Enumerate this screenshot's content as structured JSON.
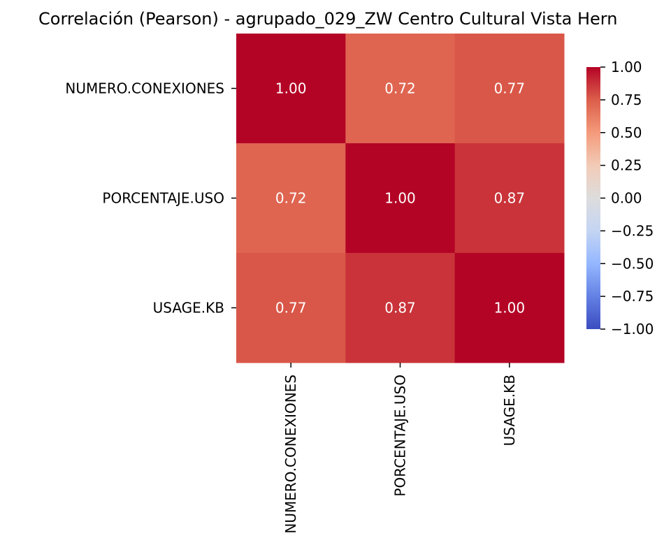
{
  "chart_data": {
    "type": "heatmap",
    "title": "Correlación (Pearson) - agrupado_029_ZW Centro Cultural Vista Hern",
    "row_labels": [
      "NUMERO.CONEXIONES",
      "PORCENTAJE.USO",
      "USAGE.KB"
    ],
    "col_labels": [
      "NUMERO.CONEXIONES",
      "PORCENTAJE.USO",
      "USAGE.KB"
    ],
    "values": [
      [
        1.0,
        0.72,
        0.77
      ],
      [
        0.72,
        1.0,
        0.87
      ],
      [
        0.77,
        0.87,
        1.0
      ]
    ],
    "cell_labels": [
      [
        "1.00",
        "0.72",
        "0.77"
      ],
      [
        "0.72",
        "1.00",
        "0.87"
      ],
      [
        "0.77",
        "0.87",
        "1.00"
      ]
    ],
    "colorbar": {
      "range": [
        -1.0,
        1.0
      ],
      "ticks": [
        1.0,
        0.75,
        0.5,
        0.25,
        0.0,
        -0.25,
        -0.5,
        -0.75,
        -1.0
      ],
      "tick_labels": [
        "1.00",
        "0.75",
        "0.50",
        "0.25",
        "0.00",
        "−0.25",
        "−0.50",
        "−0.75",
        "−1.00"
      ],
      "colormap": "coolwarm",
      "placement": "right"
    },
    "colors": {
      "low": "#3b4cc0",
      "mid": "#dddddd",
      "high": "#b40426"
    }
  }
}
